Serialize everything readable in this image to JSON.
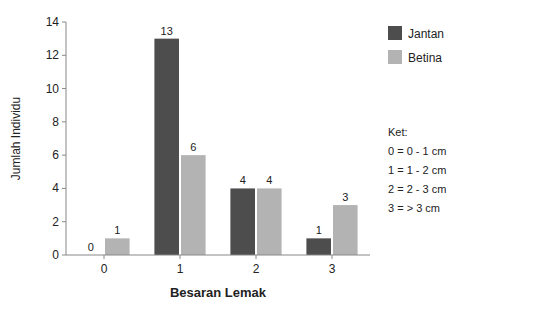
{
  "chart_data": {
    "type": "bar",
    "categories": [
      "0",
      "1",
      "2",
      "3"
    ],
    "series": [
      {
        "name": "Jantan",
        "color": "#4d4d4d",
        "values": [
          0,
          13,
          4,
          1
        ]
      },
      {
        "name": "Betina",
        "color": "#b3b3b3",
        "values": [
          1,
          6,
          4,
          3
        ]
      }
    ],
    "x_label": "Besaran Lemak",
    "y_label": "Jumlah Individu",
    "ylim": [
      0,
      14
    ],
    "yticks": [
      0,
      2,
      4,
      6,
      8,
      10,
      12,
      14
    ],
    "data_labels": true,
    "grid": false,
    "legend": "right",
    "annotations": [
      "Ket:",
      "0 = 0 - 1 cm",
      "1 = 1 - 2 cm",
      "2 = 2 - 3 cm",
      "3 = > 3 cm"
    ]
  }
}
